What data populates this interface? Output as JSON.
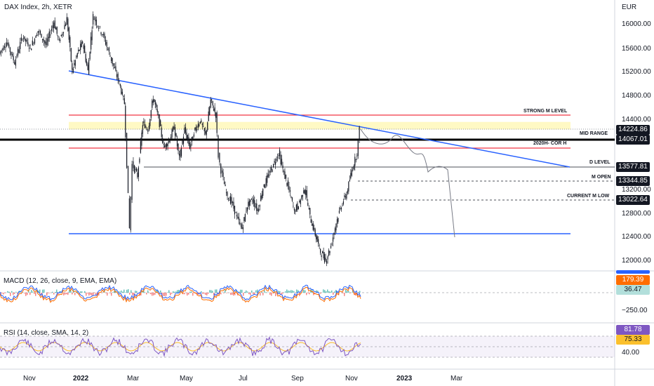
{
  "symbol_title": "DAX Index, 2h, XETR",
  "currency": "EUR",
  "main_pane": {
    "price_axis_ticks": [
      "16000.00",
      "15600.00",
      "15200.00",
      "14800.00",
      "14400.00",
      "13200.00",
      "12800.00",
      "12400.00",
      "12000.00"
    ],
    "level_labels": {
      "strong_m": "STRONG M LEVEL",
      "mid_range": "MID RANGE",
      "cor_h": "2020H- COR H",
      "d_level": "D LEVEL",
      "m_open": "M OPEN",
      "current_m_low": "CURRENT M LOW"
    },
    "price_tags": {
      "last": "14224.86",
      "mid_range": "14067.01",
      "d_level": "13577.81",
      "m_open": "13344.85",
      "current_m_low": "13022.64"
    }
  },
  "macd_pane": {
    "title": "MACD (12, 26, close, 9, EMA, EMA)",
    "values": [
      "179.39",
      "36.47"
    ],
    "axis_tick": "−250.00"
  },
  "rsi_pane": {
    "title": "RSI (14, close, SMA, 14, 2)",
    "values": [
      "81.78",
      "75.33"
    ],
    "axis_tick": "40.00"
  },
  "time_axis": [
    "Nov",
    "2022",
    "Mar",
    "May",
    "Jul",
    "Sep",
    "Nov",
    "2023",
    "Mar"
  ],
  "colors": {
    "up": "#26a69a",
    "down": "#ef5350",
    "trendline": "#2962ff",
    "red_level": "#f23645",
    "zone": "#fff59d",
    "macd": "#2962ff",
    "signal": "#ff6d00",
    "rsi": "#7e57c2",
    "rsi_ma": "#fbc02d"
  },
  "chart_data": {
    "type": "candlestick",
    "title": "DAX Index, 2h, XETR",
    "ylim": [
      11850,
      16300
    ],
    "x": [
      "Nov",
      "2022",
      "Mar",
      "May",
      "Jul",
      "Sep",
      "Nov",
      "2023",
      "Mar"
    ],
    "path_points": [
      [
        0,
        15500
      ],
      [
        3,
        15700
      ],
      [
        6,
        15350
      ],
      [
        9,
        15800
      ],
      [
        12,
        15600
      ],
      [
        15,
        15900
      ],
      [
        18,
        15650
      ],
      [
        21,
        16050
      ],
      [
        23,
        15700
      ],
      [
        26,
        16100
      ],
      [
        28,
        15200
      ],
      [
        30,
        15500
      ],
      [
        32,
        15700
      ],
      [
        34,
        15200
      ],
      [
        36,
        16150
      ],
      [
        40,
        15800
      ],
      [
        43,
        15400
      ],
      [
        46,
        15000
      ],
      [
        48,
        14650
      ],
      [
        49,
        13600
      ],
      [
        50,
        12500
      ],
      [
        51,
        13600
      ],
      [
        53,
        13400
      ],
      [
        55,
        14300
      ],
      [
        57,
        14200
      ],
      [
        59,
        14750
      ],
      [
        61,
        14400
      ],
      [
        63,
        13900
      ],
      [
        65,
        14000
      ],
      [
        67,
        14250
      ],
      [
        69,
        13700
      ],
      [
        71,
        14200
      ],
      [
        73,
        13900
      ],
      [
        75,
        14200
      ],
      [
        77,
        14350
      ],
      [
        79,
        14100
      ],
      [
        81,
        14700
      ],
      [
        83,
        14450
      ],
      [
        84,
        13750
      ],
      [
        85,
        13500
      ],
      [
        87,
        13100
      ],
      [
        89,
        12950
      ],
      [
        91,
        12700
      ],
      [
        93,
        12500
      ],
      [
        95,
        12900
      ],
      [
        97,
        13000
      ],
      [
        99,
        12800
      ],
      [
        101,
        13200
      ],
      [
        103,
        13400
      ],
      [
        105,
        13600
      ],
      [
        107,
        13800
      ],
      [
        109,
        13450
      ],
      [
        111,
        13150
      ],
      [
        113,
        12800
      ],
      [
        115,
        12950
      ],
      [
        117,
        13200
      ],
      [
        119,
        12700
      ],
      [
        121,
        12400
      ],
      [
        123,
        12100
      ],
      [
        125,
        11950
      ],
      [
        127,
        12200
      ],
      [
        129,
        12600
      ],
      [
        131,
        12900
      ],
      [
        133,
        13100
      ],
      [
        135,
        13500
      ],
      [
        137,
        13800
      ],
      [
        138,
        14200
      ]
    ],
    "projection": [
      [
        138,
        14224
      ],
      [
        141,
        14050
      ],
      [
        144,
        14150
      ],
      [
        147,
        13900
      ],
      [
        150,
        13800
      ],
      [
        153,
        13600
      ],
      [
        156,
        13400
      ],
      [
        158,
        12450
      ]
    ],
    "levels": {
      "strong_m_upper": 14480,
      "zone_top": 14330,
      "zone_bottom": 14200,
      "mid_range": 14067.01,
      "cor_h": 13950,
      "d_level": 13577.81,
      "m_open": 13344.85,
      "current_m_low": 13022.64,
      "support": 12450
    },
    "trendline": [
      [
        0,
        15200
      ],
      [
        202,
        13577
      ]
    ]
  }
}
